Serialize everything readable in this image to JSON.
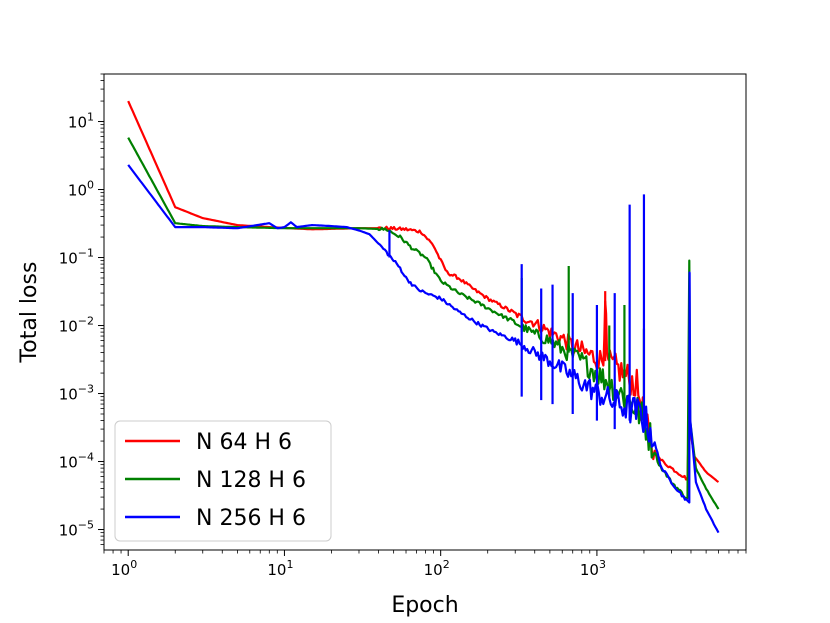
{
  "chart_data": {
    "type": "line",
    "xlabel": "Epoch",
    "ylabel": "Total loss",
    "x_scale": "log",
    "y_scale": "log",
    "xlim": [
      0.7,
      9000
    ],
    "ylim": [
      5e-06,
      50
    ],
    "x_ticks": [
      {
        "value": 1,
        "base": "10",
        "exp": "0"
      },
      {
        "value": 10,
        "base": "10",
        "exp": "1"
      },
      {
        "value": 100,
        "base": "10",
        "exp": "2"
      },
      {
        "value": 1000,
        "base": "10",
        "exp": "3"
      }
    ],
    "y_ticks": [
      {
        "value": 1e-05,
        "base": "10",
        "exp": "−5"
      },
      {
        "value": 0.0001,
        "base": "10",
        "exp": "−4"
      },
      {
        "value": 0.001,
        "base": "10",
        "exp": "−3"
      },
      {
        "value": 0.01,
        "base": "10",
        "exp": "−2"
      },
      {
        "value": 0.1,
        "base": "10",
        "exp": "−1"
      },
      {
        "value": 1,
        "base": "10",
        "exp": "0"
      },
      {
        "value": 10,
        "base": "10",
        "exp": "1"
      }
    ],
    "legend_position": "bottom-left",
    "grid": false,
    "series": [
      {
        "name": "N 64 H 6",
        "color": "#ff0000",
        "points": [
          [
            1,
            20
          ],
          [
            2,
            0.55
          ],
          [
            3,
            0.38
          ],
          [
            5,
            0.3
          ],
          [
            8,
            0.28
          ],
          [
            15,
            0.26
          ],
          [
            30,
            0.27
          ],
          [
            45,
            0.27
          ],
          [
            60,
            0.26
          ],
          [
            75,
            0.24
          ],
          [
            90,
            0.15
          ],
          [
            100,
            0.09
          ],
          [
            110,
            0.06
          ],
          [
            130,
            0.05
          ],
          [
            160,
            0.035
          ],
          [
            200,
            0.025
          ],
          [
            260,
            0.018
          ],
          [
            330,
            0.013
          ],
          [
            400,
            0.011
          ],
          [
            500,
            0.008
          ],
          [
            600,
            0.0065
          ],
          [
            700,
            0.005
          ],
          [
            800,
            0.0042
          ],
          [
            1000,
            0.0033
          ],
          [
            1100,
            0.003
          ],
          [
            1130,
            0.032
          ],
          [
            1160,
            0.003
          ],
          [
            1400,
            0.0022
          ],
          [
            1800,
            0.0013
          ],
          [
            2200,
            0.00018
          ],
          [
            2500,
            0.00011
          ],
          [
            3000,
            8e-05
          ],
          [
            3800,
            5.5e-05
          ],
          [
            3900,
            0.00075
          ],
          [
            3950,
            0.0003
          ],
          [
            4200,
            0.00012
          ],
          [
            5000,
            7e-05
          ],
          [
            6000,
            5e-05
          ]
        ],
        "spikes": [
          [
            1130,
            0.032,
            0.003
          ]
        ]
      },
      {
        "name": "N 128 H 6",
        "color": "#008000",
        "points": [
          [
            1,
            5.8
          ],
          [
            2,
            0.32
          ],
          [
            3,
            0.29
          ],
          [
            5,
            0.28
          ],
          [
            10,
            0.27
          ],
          [
            20,
            0.27
          ],
          [
            30,
            0.27
          ],
          [
            45,
            0.26
          ],
          [
            55,
            0.2
          ],
          [
            65,
            0.14
          ],
          [
            80,
            0.1
          ],
          [
            100,
            0.045
          ],
          [
            130,
            0.03
          ],
          [
            170,
            0.022
          ],
          [
            220,
            0.016
          ],
          [
            300,
            0.011
          ],
          [
            400,
            0.0075
          ],
          [
            500,
            0.006
          ],
          [
            600,
            0.0045
          ],
          [
            800,
            0.003
          ],
          [
            1000,
            0.002
          ],
          [
            1300,
            0.0012
          ],
          [
            1600,
            0.0008
          ],
          [
            1900,
            0.0005
          ],
          [
            2100,
            0.0003
          ],
          [
            2500,
            9e-05
          ],
          [
            3000,
            5e-05
          ],
          [
            3800,
            2.8e-05
          ],
          [
            3900,
            0.09
          ],
          [
            3950,
            0.0004
          ],
          [
            4300,
            8e-05
          ],
          [
            5000,
            4e-05
          ],
          [
            6000,
            2e-05
          ]
        ],
        "spikes": [
          [
            330,
            0.05,
            0.008
          ],
          [
            660,
            0.075,
            0.004
          ],
          [
            1200,
            0.01,
            0.0009
          ],
          [
            1500,
            0.02,
            0.0006
          ],
          [
            2000,
            0.009,
            0.0004
          ]
        ]
      },
      {
        "name": "N 256 H 6",
        "color": "#0000ff",
        "points": [
          [
            1,
            2.3
          ],
          [
            2,
            0.28
          ],
          [
            3,
            0.28
          ],
          [
            5,
            0.27
          ],
          [
            8,
            0.32
          ],
          [
            9,
            0.27
          ],
          [
            10,
            0.28
          ],
          [
            11,
            0.33
          ],
          [
            12,
            0.28
          ],
          [
            15,
            0.3
          ],
          [
            20,
            0.29
          ],
          [
            25,
            0.28
          ],
          [
            30,
            0.25
          ],
          [
            35,
            0.22
          ],
          [
            40,
            0.16
          ],
          [
            45,
            0.12
          ],
          [
            50,
            0.09
          ],
          [
            55,
            0.07
          ],
          [
            60,
            0.05
          ],
          [
            70,
            0.035
          ],
          [
            80,
            0.03
          ],
          [
            100,
            0.025
          ],
          [
            130,
            0.016
          ],
          [
            170,
            0.011
          ],
          [
            220,
            0.008
          ],
          [
            300,
            0.006
          ],
          [
            400,
            0.004
          ],
          [
            500,
            0.003
          ],
          [
            700,
            0.0018
          ],
          [
            900,
            0.0012
          ],
          [
            1200,
            0.0008
          ],
          [
            1600,
            0.0006
          ],
          [
            1900,
            0.0005
          ],
          [
            2200,
            0.0003
          ],
          [
            2600,
            8e-05
          ],
          [
            3000,
            5e-05
          ],
          [
            3500,
            3.2e-05
          ],
          [
            3900,
            2.5e-05
          ],
          [
            3920,
            0.06
          ],
          [
            3960,
            0.0004
          ],
          [
            4300,
            5e-05
          ],
          [
            5000,
            2e-05
          ],
          [
            6000,
            9e-06
          ]
        ],
        "spikes": [
          [
            47,
            0.25,
            0.1
          ],
          [
            330,
            0.08,
            0.0009
          ],
          [
            440,
            0.035,
            0.0008
          ],
          [
            520,
            0.04,
            0.0007
          ],
          [
            700,
            0.03,
            0.0005
          ],
          [
            1000,
            0.02,
            0.0004
          ],
          [
            1300,
            0.03,
            0.0003
          ],
          [
            1620,
            0.6,
            0.0004
          ],
          [
            2000,
            0.85,
            0.0003
          ]
        ]
      }
    ]
  }
}
